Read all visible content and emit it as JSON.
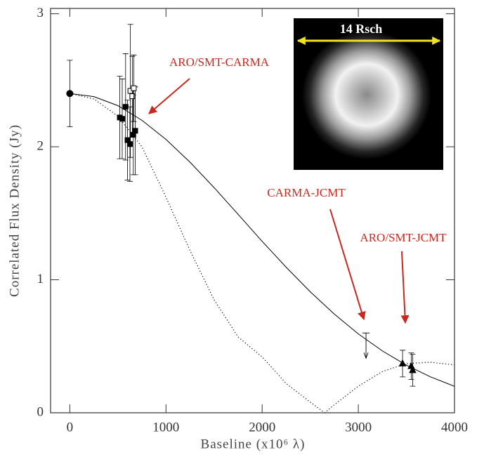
{
  "chart_data": {
    "type": "scatter",
    "x_label": "Baseline (x10⁶ λ)",
    "y_label": "Correlated Flux Density (Jy)",
    "xlim": [
      -200,
      4000
    ],
    "ylim": [
      0,
      3.04
    ],
    "xticks": [
      0,
      1000,
      2000,
      3000,
      4000
    ],
    "yticks": [
      0,
      1,
      2,
      3
    ],
    "color": "#000000",
    "annotation_color": "#c8281e",
    "series": [
      {
        "marker": "circle",
        "filled": true,
        "x": [
          0
        ],
        "values": [
          2.4
        ],
        "errors": [
          0.25
        ]
      },
      {
        "marker": "square",
        "filled": true,
        "x": [
          520,
          545,
          580,
          600,
          625,
          660,
          680
        ],
        "values": [
          2.22,
          2.21,
          2.3,
          2.05,
          2.02,
          2.09,
          2.12
        ],
        "errors": [
          0.31,
          0.3,
          0.4,
          0.3,
          0.28,
          0.3,
          0.33
        ]
      },
      {
        "marker": "square",
        "filled": false,
        "x": [
          630,
          650,
          665
        ],
        "values": [
          2.42,
          2.38,
          2.44
        ],
        "errors": [
          0.5,
          0.3,
          0.25
        ]
      },
      {
        "marker": "triangle",
        "filled": true,
        "x": [
          3460,
          3550,
          3565
        ],
        "values": [
          0.37,
          0.35,
          0.32
        ],
        "errors": [
          0.1,
          0.1,
          0.12
        ]
      },
      {
        "marker": "upper-limit",
        "x": [
          3080
        ],
        "values": [
          0.6
        ]
      },
      {
        "marker": "none",
        "line": "solid",
        "x": [
          0,
          250,
          500,
          750,
          1000,
          1250,
          1500,
          1750,
          2000,
          2250,
          2500,
          2750,
          3000,
          3250,
          3500,
          3750,
          4000
        ],
        "values": [
          2.4,
          2.377,
          2.309,
          2.199,
          2.055,
          1.884,
          1.693,
          1.492,
          1.289,
          1.094,
          0.91,
          0.742,
          0.593,
          0.465,
          0.358,
          0.27,
          0.199
        ]
      },
      {
        "marker": "none",
        "line": "dotted",
        "x": [
          0,
          250,
          500,
          750,
          1000,
          1250,
          1500,
          1750,
          2000,
          2250,
          2500,
          2650,
          2750,
          3000,
          3250,
          3500,
          3750,
          4000
        ],
        "values": [
          2.4,
          2.36,
          2.23,
          2.0,
          1.62,
          1.22,
          0.85,
          0.57,
          0.42,
          0.22,
          0.08,
          0,
          0.06,
          0.2,
          0.31,
          0.37,
          0.38,
          0.36
        ]
      }
    ],
    "annotations": [
      "ARO/SMT-CARMA",
      "CARMA-JCMT",
      "ARO/SMT-JCMT"
    ],
    "inset_label": "14 Rsch"
  }
}
